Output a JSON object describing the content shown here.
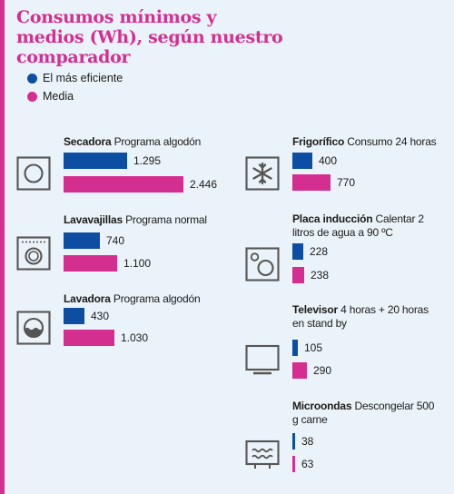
{
  "title": "Consumos mínimos y medios (Wh), según nuestro comparador",
  "legend": [
    {
      "label": "El más eficiente",
      "color": "#0d4ea3"
    },
    {
      "label": "Media",
      "color": "#d52e91"
    }
  ],
  "chart_data": {
    "type": "bar",
    "title": "Consumos mínimos y medios (Wh), según nuestro comparador",
    "unit": "Wh",
    "series": [
      {
        "name": "El más eficiente",
        "color": "#0d4ea3"
      },
      {
        "name": "Media",
        "color": "#d52e91"
      }
    ],
    "items": [
      {
        "name": "Secadora",
        "detail": "Programa algodón",
        "icon": "dryer-icon",
        "values": [
          1295,
          2446
        ],
        "labels": [
          "1.295",
          "2.446"
        ]
      },
      {
        "name": "Lavavajillas",
        "detail": "Programa normal",
        "icon": "dishwasher-icon",
        "values": [
          740,
          1100
        ],
        "labels": [
          "740",
          "1.100"
        ]
      },
      {
        "name": "Lavadora",
        "detail": "Programa algodón",
        "icon": "washing-machine-icon",
        "values": [
          430,
          1030
        ],
        "labels": [
          "430",
          "1.030"
        ]
      },
      {
        "name": "Frigorífico",
        "detail": "Consumo 24 horas",
        "icon": "fridge-icon",
        "values": [
          400,
          770
        ],
        "labels": [
          "400",
          "770"
        ]
      },
      {
        "name": "Placa inducción",
        "detail": "Calentar 2 litros de agua a 90 ºC",
        "icon": "induction-hob-icon",
        "values": [
          228,
          238
        ],
        "labels": [
          "228",
          "238"
        ]
      },
      {
        "name": "Televisor",
        "detail": "4 horas + 20 horas en stand by",
        "icon": "tv-icon",
        "values": [
          105,
          290
        ],
        "labels": [
          "105",
          "290"
        ]
      },
      {
        "name": "Microondas",
        "detail": "Descongelar 500 g carne",
        "icon": "microwave-icon",
        "values": [
          38,
          63
        ],
        "labels": [
          "38",
          "63"
        ]
      }
    ]
  }
}
